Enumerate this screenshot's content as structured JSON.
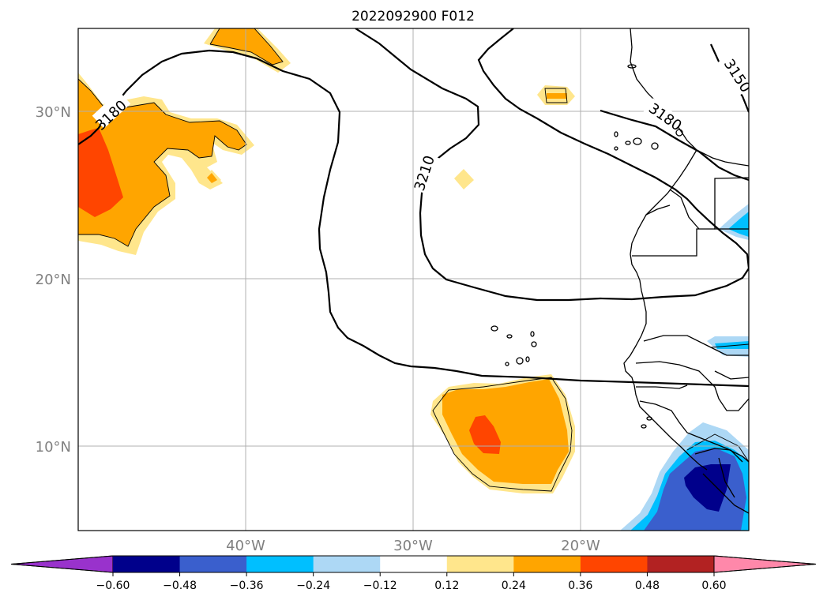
{
  "title": "2022092900 F012",
  "map": {
    "lat_labels": [
      "30°N",
      "20°N",
      "10°N"
    ],
    "lon_labels": [
      "40°W",
      "30°W",
      "20°W"
    ],
    "contour_labels": [
      "3180",
      "3210",
      "3180",
      "3150"
    ]
  },
  "colorbar": {
    "ticks": [
      "−0.60",
      "−0.48",
      "−0.36",
      "−0.24",
      "−0.12",
      "0.12",
      "0.24",
      "0.36",
      "0.48",
      "0.60"
    ],
    "colors": [
      "#9932cc",
      "#00008b",
      "#3a5fcd",
      "#00bfff",
      "#add8f5",
      "#ffffff",
      "#ffe68c",
      "#ffa500",
      "#ff4500",
      "#b22222",
      "#ff88aa"
    ]
  },
  "colors": {
    "yellow": "#ffe68c",
    "orange": "#ffa500",
    "red": "#ff4500",
    "lightblue": "#add8f5",
    "cyan": "#00bfff",
    "blue": "#3a5fcd",
    "navy": "#00008b",
    "grid": "#b0b0b0"
  }
}
